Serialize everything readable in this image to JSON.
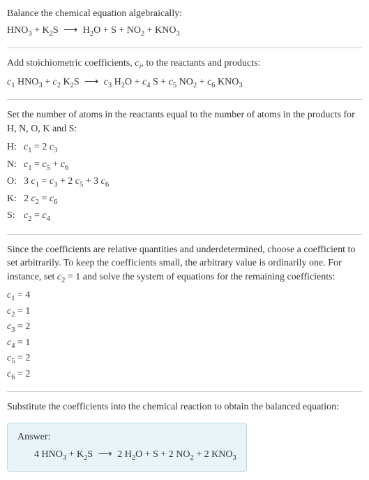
{
  "intro": {
    "text": "Balance the chemical equation algebraically:",
    "equation_html": "HNO<sub class=\"sub\">3</sub> + K<sub class=\"sub\">2</sub>S <span class=\"arrow\">⟶</span> H<sub class=\"sub\">2</sub>O + S + NO<sub class=\"sub\">2</sub> + KNO<sub class=\"sub\">3</sub>"
  },
  "stoich": {
    "text_html": "Add stoichiometric coefficients, <span class=\"italic\">c<sub class=\"sub\">i</sub></span>, to the reactants and products:",
    "equation_html": "<span class=\"italic\">c</span><sub class=\"sub\">1</sub> HNO<sub class=\"sub\">3</sub> + <span class=\"italic\">c</span><sub class=\"sub\">2</sub> K<sub class=\"sub\">2</sub>S <span class=\"arrow\">⟶</span> <span class=\"italic\">c</span><sub class=\"sub\">3</sub> H<sub class=\"sub\">2</sub>O + <span class=\"italic\">c</span><sub class=\"sub\">4</sub> S + <span class=\"italic\">c</span><sub class=\"sub\">5</sub> NO<sub class=\"sub\">2</sub> + <span class=\"italic\">c</span><sub class=\"sub\">6</sub> KNO<sub class=\"sub\">3</sub>"
  },
  "atoms": {
    "text": "Set the number of atoms in the reactants equal to the number of atoms in the products for H, N, O, K and S:",
    "rows": [
      {
        "element": "H:",
        "eq_html": "<span class=\"italic\">c</span><sub class=\"sub\">1</sub> = 2 <span class=\"italic\">c</span><sub class=\"sub\">3</sub>"
      },
      {
        "element": "N:",
        "eq_html": "<span class=\"italic\">c</span><sub class=\"sub\">1</sub> = <span class=\"italic\">c</span><sub class=\"sub\">5</sub> + <span class=\"italic\">c</span><sub class=\"sub\">6</sub>"
      },
      {
        "element": "O:",
        "eq_html": "3 <span class=\"italic\">c</span><sub class=\"sub\">1</sub> = <span class=\"italic\">c</span><sub class=\"sub\">3</sub> + 2 <span class=\"italic\">c</span><sub class=\"sub\">5</sub> + 3 <span class=\"italic\">c</span><sub class=\"sub\">6</sub>"
      },
      {
        "element": "K:",
        "eq_html": "2 <span class=\"italic\">c</span><sub class=\"sub\">2</sub> = <span class=\"italic\">c</span><sub class=\"sub\">6</sub>"
      },
      {
        "element": "S:",
        "eq_html": "<span class=\"italic\">c</span><sub class=\"sub\">2</sub> = <span class=\"italic\">c</span><sub class=\"sub\">4</sub>"
      }
    ]
  },
  "solve": {
    "text_html": "Since the coefficients are relative quantities and underdetermined, choose a coefficient to set arbitrarily. To keep the coefficients small, the arbitrary value is ordinarily one. For instance, set <span class=\"italic\">c</span><sub class=\"sub\">2</sub> = 1 and solve the system of equations for the remaining coefficients:",
    "coefs": [
      {
        "html": "<span class=\"italic\">c</span><sub class=\"sub\">1</sub> = 4"
      },
      {
        "html": "<span class=\"italic\">c</span><sub class=\"sub\">2</sub> = 1"
      },
      {
        "html": "<span class=\"italic\">c</span><sub class=\"sub\">3</sub> = 2"
      },
      {
        "html": "<span class=\"italic\">c</span><sub class=\"sub\">4</sub> = 1"
      },
      {
        "html": "<span class=\"italic\">c</span><sub class=\"sub\">5</sub> = 2"
      },
      {
        "html": "<span class=\"italic\">c</span><sub class=\"sub\">6</sub> = 2"
      }
    ]
  },
  "substitute": {
    "text": "Substitute the coefficients into the chemical reaction to obtain the balanced equation:"
  },
  "answer": {
    "label": "Answer:",
    "equation_html": "4 HNO<sub class=\"sub\">3</sub> + K<sub class=\"sub\">2</sub>S <span class=\"arrow\">⟶</span> 2 H<sub class=\"sub\">2</sub>O + S + 2 NO<sub class=\"sub\">2</sub> + 2 KNO<sub class=\"sub\">3</sub>"
  },
  "colors": {
    "text": "#333333",
    "hr": "#cccccc",
    "answer_bg": "#e8f4f8",
    "answer_border": "#b8d8e0",
    "background": "#ffffff"
  },
  "typography": {
    "body_fontsize": 14,
    "font_family": "Georgia, serif"
  }
}
